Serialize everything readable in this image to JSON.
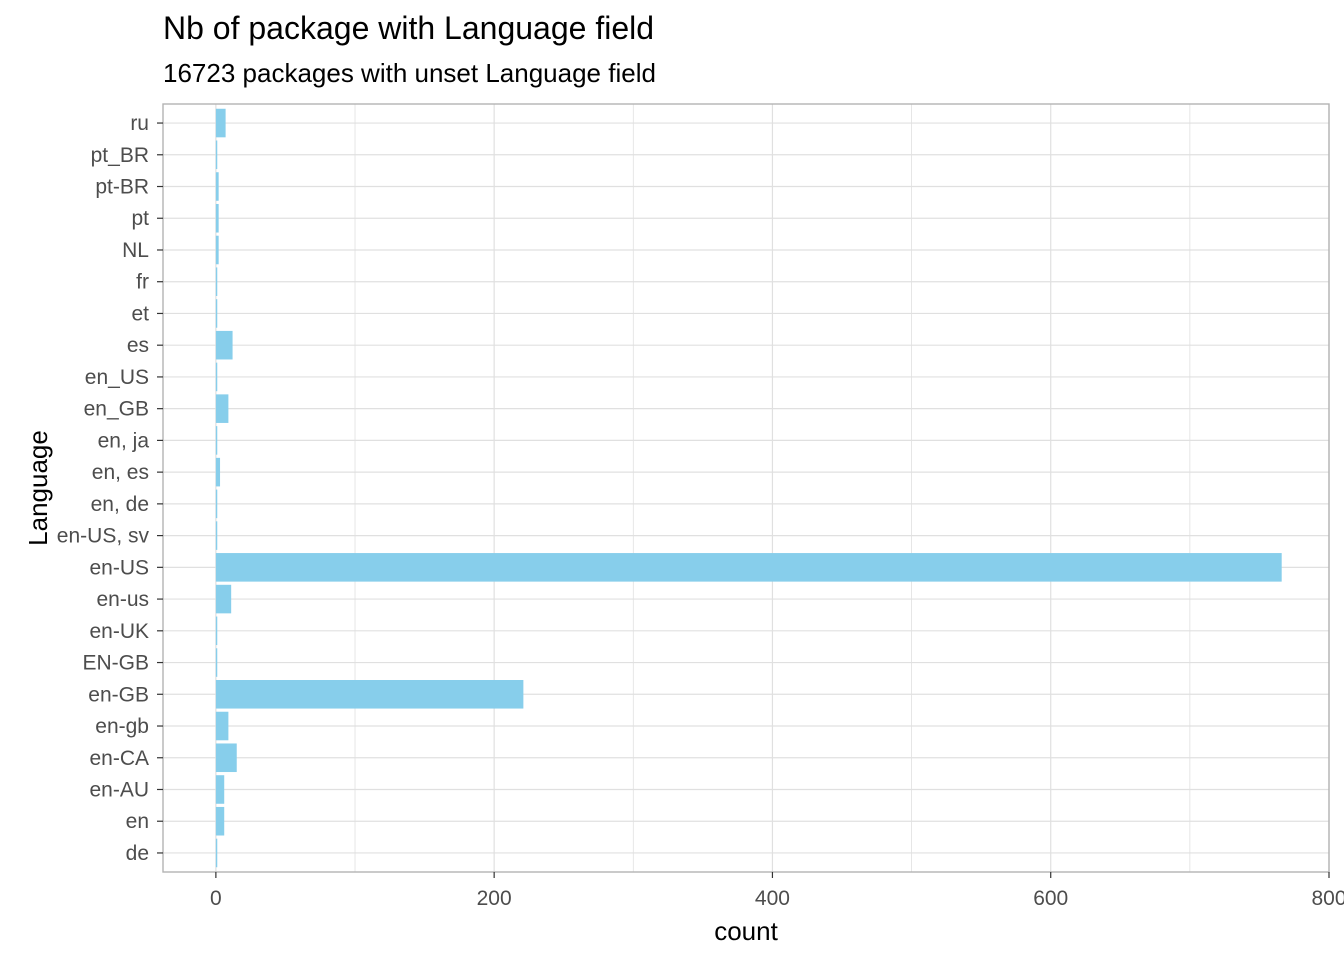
{
  "chart_data": {
    "type": "bar",
    "orientation": "horizontal",
    "title": "Nb of package with Language field",
    "subtitle": "16723 packages with unset Language field",
    "xlabel": "count",
    "ylabel": "Language",
    "categories": [
      "de",
      "en",
      "en-AU",
      "en-CA",
      "en-gb",
      "en-GB",
      "EN-GB",
      "en-UK",
      "en-us",
      "en-US",
      "en-US, sv",
      "en, de",
      "en, es",
      "en, ja",
      "en_GB",
      "en_US",
      "es",
      "et",
      "fr",
      "NL",
      "pt",
      "pt-BR",
      "pt_BR",
      "ru"
    ],
    "values": [
      1,
      6,
      6,
      15,
      9,
      221,
      1,
      1,
      11,
      766,
      1,
      1,
      3,
      1,
      9,
      1,
      12,
      1,
      1,
      2,
      2,
      2,
      1,
      7
    ],
    "xlim": [
      -38,
      800
    ],
    "xticks": [
      0,
      200,
      400,
      600,
      800
    ],
    "grid": true,
    "bar_color": "#87CEEB",
    "grid_color": "#e0e0e0",
    "panel_border_color": "#b3b3b3"
  }
}
